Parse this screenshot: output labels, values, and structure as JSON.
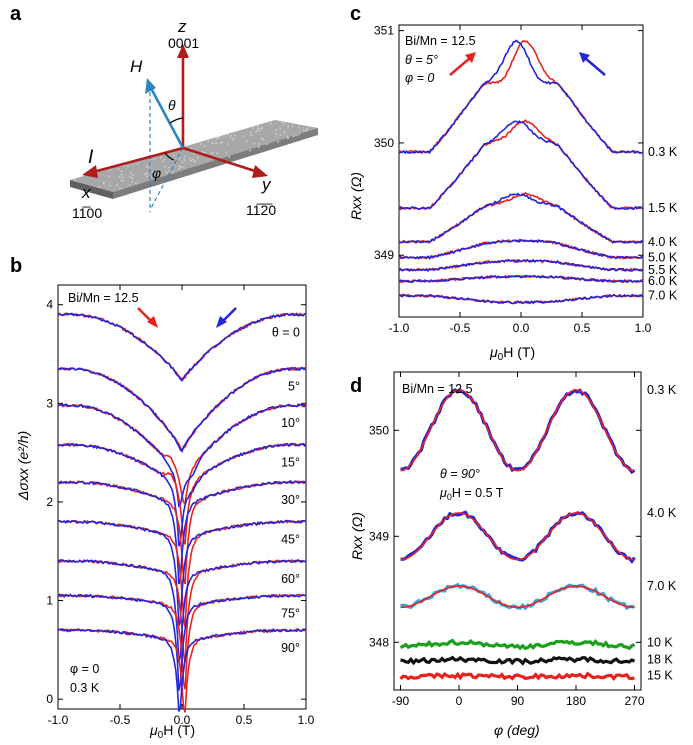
{
  "panels": [
    {
      "id": "a",
      "letter": "a"
    },
    {
      "id": "b",
      "letter": "b"
    },
    {
      "id": "c",
      "letter": "c"
    },
    {
      "id": "d",
      "letter": "d"
    }
  ],
  "diagram": {
    "z_label": "z",
    "z_dir": "0001",
    "y_label": "y",
    "y_dir": "11̅2̅0",
    "x_label": "x",
    "x_dir": "11̅00",
    "H_label": "H",
    "I_label": "I",
    "theta": "θ",
    "phi": "φ",
    "colors": {
      "axes": "#b01c1c",
      "field": "#2a86c2",
      "film": "#9a9a9a"
    }
  },
  "chart_data": [
    {
      "panel": "b",
      "type": "line",
      "xlabel_main": "μ",
      "xlabel_sub": "0",
      "xlabel_rest": "H (T)",
      "ylabel": "Δσxx (e²/h)",
      "xlim": [
        -1.0,
        1.0
      ],
      "ylim": [
        -0.1,
        4.2
      ],
      "xticks": [
        -1.0,
        -0.5,
        0.0,
        0.5,
        1.0
      ],
      "xticklabels": [
        "-1.0",
        "-0.5",
        "0.0",
        "0.5",
        "1.0"
      ],
      "yticks": [
        0,
        1,
        2,
        3,
        4
      ],
      "yticklabels": [
        "0",
        "1",
        "2",
        "3",
        "4"
      ],
      "annotations": {
        "sample": "Bi/Mn = 12.5",
        "phi": "φ = 0",
        "temp": "0.3 K"
      },
      "series": [
        {
          "label": "θ = 0",
          "offset": 3.9,
          "drop": 0.65,
          "dip": 0.02
        },
        {
          "label": "5°",
          "offset": 3.35,
          "drop": 0.8,
          "dip": 0.05
        },
        {
          "label": "10°",
          "offset": 2.98,
          "drop": 0.75,
          "dip": 0.35
        },
        {
          "label": "15°",
          "offset": 2.58,
          "drop": 0.45,
          "dip": 0.7
        },
        {
          "label": "30°",
          "offset": 2.2,
          "drop": 0.25,
          "dip": 0.95
        },
        {
          "label": "45°",
          "offset": 1.8,
          "drop": 0.18,
          "dip": 1.05
        },
        {
          "label": "60°",
          "offset": 1.4,
          "drop": 0.15,
          "dip": 1.05
        },
        {
          "label": "75°",
          "offset": 1.05,
          "drop": 0.12,
          "dip": 1.0
        },
        {
          "label": "90°",
          "offset": 0.7,
          "drop": 0.12,
          "dip": 0.85
        }
      ],
      "colors": {
        "up": "#e8231f",
        "down": "#2424d8"
      }
    },
    {
      "panel": "c",
      "type": "line",
      "xlabel_main": "μ",
      "xlabel_sub": "0",
      "xlabel_rest": "H (T)",
      "ylabel": "Rxx (Ω)",
      "xlim": [
        -1.0,
        1.0
      ],
      "ylim": [
        348.45,
        351.05
      ],
      "xticks": [
        -1.0,
        -0.5,
        0.0,
        0.5,
        1.0
      ],
      "xticklabels": [
        "-1.0",
        "-0.5",
        "0.0",
        "0.5",
        "1.0"
      ],
      "yticks": [
        349,
        350,
        351
      ],
      "yticklabels": [
        "349",
        "350",
        "351"
      ],
      "annotations": {
        "sample": "Bi/Mn = 12.5",
        "theta": "θ = 5°",
        "phi": "φ = 0"
      },
      "series": [
        {
          "label": "0.3 K",
          "base": 349.92,
          "peak": 0.75,
          "feature": 0.25
        },
        {
          "label": "1.5 K",
          "base": 349.42,
          "peak": 0.68,
          "feature": 0.1
        },
        {
          "label": "4.0 K",
          "base": 349.12,
          "peak": 0.38,
          "feature": 0.05
        },
        {
          "label": "5.0 K",
          "base": 348.98,
          "peak": 0.15,
          "feature": 0.0
        },
        {
          "label": "5.5 K",
          "base": 348.87,
          "peak": 0.08,
          "feature": 0.0
        },
        {
          "label": "6.0 K",
          "base": 348.77,
          "peak": 0.04,
          "feature": 0.0
        },
        {
          "label": "7.0 K",
          "base": 348.64,
          "peak": -0.06,
          "feature": 0.0
        }
      ],
      "colors": {
        "up": "#e8231f",
        "down": "#2424d8"
      }
    },
    {
      "panel": "d",
      "type": "line",
      "xlabel": "φ (deg)",
      "ylabel": "Rxx (Ω)",
      "xlim": [
        -100,
        280
      ],
      "ylim": [
        347.55,
        350.55
      ],
      "xticks": [
        -90,
        0,
        90,
        180,
        270
      ],
      "xticklabels": [
        "-90",
        "0",
        "90",
        "180",
        "270"
      ],
      "yticks": [
        348,
        349,
        350
      ],
      "yticklabels": [
        "348",
        "349",
        "350"
      ],
      "annotations": {
        "sample": "Bi/Mn = 12.5",
        "theta": "θ = 90°",
        "field_main": "μ",
        "field_sub": "0",
        "field_rest": "H = 0.5 T"
      },
      "series": [
        {
          "label": "0.3 K",
          "mean": 350.0,
          "amp": 0.38,
          "color": "#2424d8"
        },
        {
          "label": "4.0 K",
          "mean": 349.0,
          "amp": 0.22,
          "color": "#2424d8"
        },
        {
          "label": "7.0 K",
          "mean": 348.43,
          "amp": 0.1,
          "color": "#3aa0d8"
        },
        {
          "label": "10 K",
          "mean": 347.98,
          "amp": 0.02,
          "color": "#1aa01a"
        },
        {
          "label": "18 K",
          "mean": 347.83,
          "amp": 0.01,
          "color": "#111111"
        },
        {
          "label": "15 K",
          "mean": 347.68,
          "amp": 0.005,
          "color": "#e8231f"
        }
      ],
      "fit_color": "#e8231f"
    }
  ]
}
